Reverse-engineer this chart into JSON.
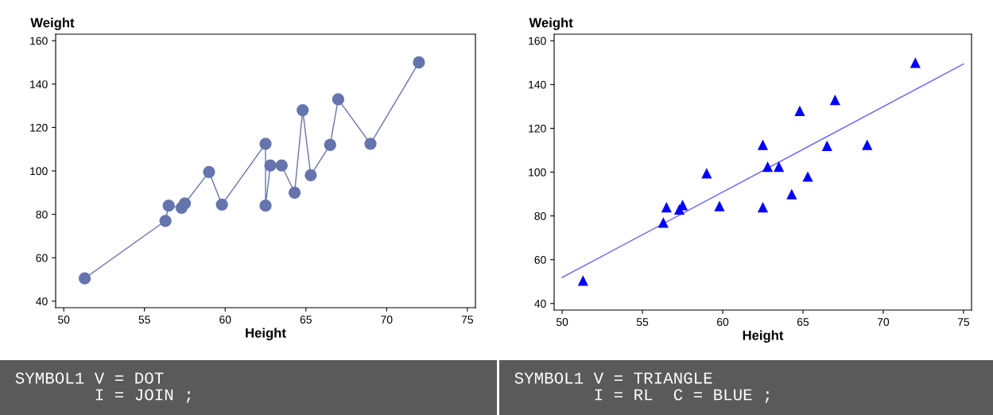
{
  "chart_data": [
    {
      "type": "line",
      "xlabel": "Height",
      "ylabel": "Weight",
      "xlim": [
        49.5,
        75.5
      ],
      "ylim": [
        37,
        163
      ],
      "xticks": [
        50,
        55,
        60,
        65,
        70,
        75
      ],
      "yticks": [
        40,
        60,
        80,
        100,
        120,
        140,
        160
      ],
      "marker": "circle",
      "grid": false,
      "legend": false,
      "series": [
        {
          "color": "#6674ad",
          "x": [
            51.3,
            56.3,
            56.5,
            57.3,
            57.5,
            59.0,
            59.8,
            62.5,
            62.5,
            62.8,
            63.5,
            64.3,
            64.8,
            65.3,
            66.5,
            67.0,
            69.0,
            72.0
          ],
          "values": [
            50.5,
            77.0,
            84.0,
            83.0,
            85.0,
            99.5,
            84.5,
            112.5,
            84.0,
            102.5,
            102.5,
            90.0,
            128.0,
            98.0,
            112.0,
            133.0,
            112.5,
            150.0
          ]
        }
      ],
      "annotations": [
        "SYMBOL1 V = DOT\n        I = JOIN ;"
      ]
    },
    {
      "type": "scatter",
      "xlabel": "Height",
      "ylabel": "Weight",
      "xlim": [
        49.5,
        75.5
      ],
      "ylim": [
        37,
        163
      ],
      "xticks": [
        50,
        55,
        60,
        65,
        70,
        75
      ],
      "yticks": [
        40,
        60,
        80,
        100,
        120,
        140,
        160
      ],
      "marker": "triangle",
      "grid": false,
      "legend": false,
      "series": [
        {
          "color": "#0000ff",
          "x": [
            51.3,
            56.3,
            56.5,
            57.3,
            57.5,
            59.0,
            59.8,
            62.5,
            62.5,
            62.8,
            63.5,
            64.3,
            64.8,
            65.3,
            66.5,
            67.0,
            69.0,
            72.0
          ],
          "values": [
            50.5,
            77.0,
            84.0,
            83.0,
            85.0,
            99.5,
            84.5,
            112.5,
            84.0,
            102.5,
            102.5,
            90.0,
            128.0,
            98.0,
            112.0,
            133.0,
            112.5,
            150.0
          ]
        },
        {
          "type": "line",
          "marker": "none",
          "color": "#6666ff",
          "x": [
            50,
            75
          ],
          "values": [
            51.9,
            149.4
          ]
        }
      ],
      "annotations": [
        "SYMBOL1 V = TRIANGLE\n        I = RL  C = BLUE ;"
      ]
    }
  ]
}
